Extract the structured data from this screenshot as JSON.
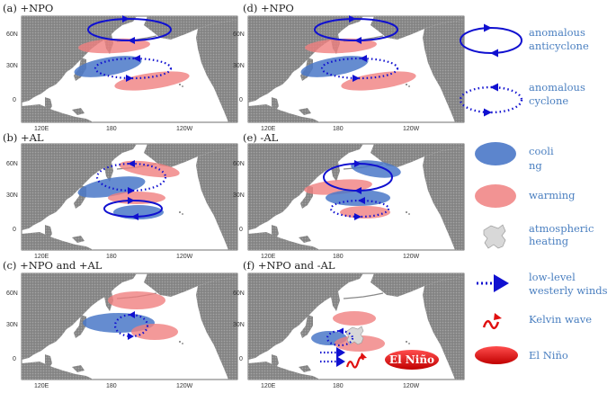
{
  "panels": [
    {
      "title": "(a) +NPO"
    },
    {
      "title": "(b) +AL"
    },
    {
      "title": "(c) +NPO and +AL"
    },
    {
      "title": "(d) +NPO"
    },
    {
      "title": "(e) -AL"
    },
    {
      "title": "(f) +NPO and -AL"
    }
  ],
  "axes": {
    "lat_ticks": [
      "60N",
      "30N",
      "0"
    ],
    "lon_ticks": [
      "120E",
      "180",
      "120W"
    ]
  },
  "legend": {
    "anticyclone": [
      "anomalous",
      "anticyclone"
    ],
    "cyclone": [
      "anomalous",
      "cyclone"
    ],
    "cooling": [
      "cooli",
      "ng"
    ],
    "warming": [
      "warming"
    ],
    "heating": [
      "atmospheric",
      "heating"
    ],
    "winds": [
      "low-level",
      "westerly winds"
    ],
    "kelvin": [
      "Kelvin wave"
    ],
    "elnino": [
      "El Niño"
    ]
  },
  "elnino_box_label": "El Niño",
  "colors": {
    "cool": "#4a78c8",
    "warm": "#f08080",
    "circulation": "#1010d0",
    "kelvin": "#e01010",
    "elnino": "#d40000",
    "land": "#8a8a8a",
    "legend_text": "#4a7fc0"
  }
}
